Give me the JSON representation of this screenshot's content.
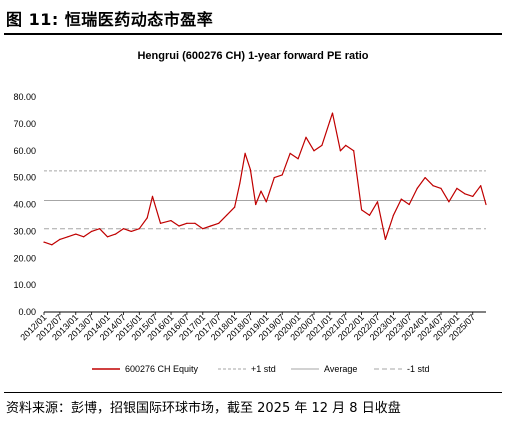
{
  "figure": {
    "title": "图 11: 恒瑞医药动态市盈率",
    "source": "资料来源：彭博，招银国际环球市场，截至 2025 年 12 月 8 日收盘"
  },
  "chart_data": {
    "type": "line",
    "title": "Hengrui (600276 CH) 1-year forward PE ratio",
    "xlabel": "",
    "ylabel": "",
    "ylim": [
      0,
      80
    ],
    "y_ticks": [
      "0.00",
      "10.00",
      "20.00",
      "30.00",
      "40.00",
      "50.00",
      "60.00",
      "70.00",
      "80.00"
    ],
    "x_ticks": [
      "2012/01",
      "2012/07",
      "2013/01",
      "2013/07",
      "2014/01",
      "2014/07",
      "2015/01",
      "2015/07",
      "2016/01",
      "2016/07",
      "2017/01",
      "2017/07",
      "2018/01",
      "2018/07",
      "2019/01",
      "2019/07",
      "2020/01",
      "2020/07",
      "2021/01",
      "2021/07",
      "2022/01",
      "2022/07",
      "2023/01",
      "2023/07",
      "2024/01",
      "2024/07",
      "2025/01",
      "2025/07"
    ],
    "grid": "horizontal reference lines only",
    "legend_position": "bottom",
    "colors": {
      "equity": "#c00000",
      "average": "#a6a6a6",
      "plus_std": "#a6a6a6",
      "minus_std": "#a6a6a6"
    },
    "series": [
      {
        "name": "600276 CH Equity",
        "x": [
          "2012/01",
          "2012/04",
          "2012/07",
          "2012/10",
          "2013/01",
          "2013/04",
          "2013/07",
          "2013/10",
          "2014/01",
          "2014/04",
          "2014/07",
          "2014/10",
          "2015/01",
          "2015/04",
          "2015/06",
          "2015/09",
          "2016/01",
          "2016/04",
          "2016/07",
          "2016/10",
          "2017/01",
          "2017/04",
          "2017/07",
          "2017/10",
          "2018/01",
          "2018/03",
          "2018/05",
          "2018/07",
          "2018/09",
          "2018/11",
          "2019/01",
          "2019/04",
          "2019/07",
          "2019/10",
          "2020/01",
          "2020/04",
          "2020/07",
          "2020/10",
          "2021/01",
          "2021/02",
          "2021/05",
          "2021/07",
          "2021/10",
          "2022/01",
          "2022/04",
          "2022/07",
          "2022/10",
          "2023/01",
          "2023/04",
          "2023/07",
          "2023/10",
          "2024/01",
          "2024/04",
          "2024/07",
          "2024/10",
          "2025/01",
          "2025/04",
          "2025/07",
          "2025/10",
          "2025/12"
        ],
        "values": [
          26,
          25,
          27,
          28,
          29,
          28,
          30,
          31,
          28,
          29,
          31,
          30,
          31,
          35,
          43,
          33,
          34,
          32,
          33,
          33,
          31,
          32,
          33,
          36,
          39,
          48,
          59,
          53,
          40,
          45,
          41,
          50,
          51,
          59,
          57,
          65,
          60,
          62,
          71,
          74,
          60,
          62,
          60,
          38,
          36,
          41,
          27,
          36,
          42,
          40,
          46,
          50,
          47,
          46,
          41,
          46,
          44,
          43,
          47,
          40
        ]
      },
      {
        "name": "+1 std",
        "values": [
          52.5
        ]
      },
      {
        "name": "Average",
        "values": [
          41.5
        ]
      },
      {
        "name": "-1 std",
        "values": [
          31
        ]
      }
    ]
  }
}
